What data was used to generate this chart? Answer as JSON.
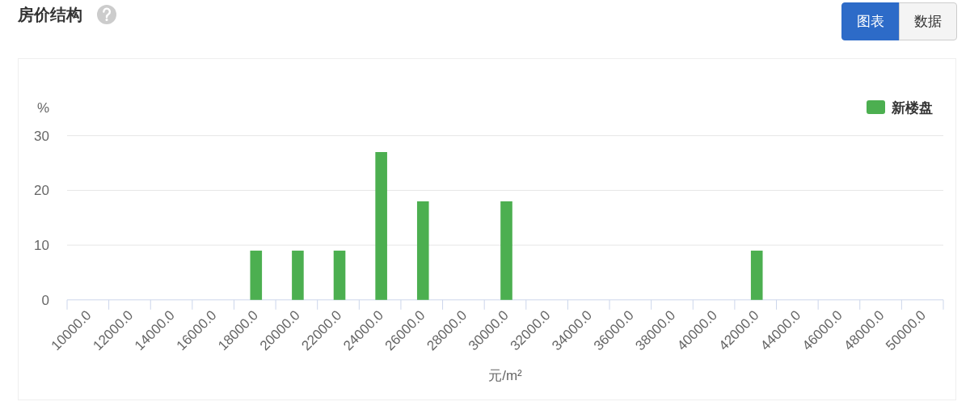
{
  "chart_data": {
    "type": "bar",
    "title": "房价结构",
    "categories": [
      "10000.0",
      "12000.0",
      "14000.0",
      "16000.0",
      "18000.0",
      "20000.0",
      "22000.0",
      "24000.0",
      "26000.0",
      "28000.0",
      "30000.0",
      "32000.0",
      "34000.0",
      "36000.0",
      "38000.0",
      "40000.0",
      "42000.0",
      "44000.0",
      "46000.0",
      "48000.0",
      "50000.0"
    ],
    "series": [
      {
        "name": "新楼盘",
        "color": "#4caf50",
        "values": [
          0,
          0,
          0,
          0,
          9,
          9,
          9,
          27,
          18,
          0,
          18,
          0,
          0,
          0,
          0,
          0,
          9,
          0,
          0,
          0,
          0
        ]
      }
    ],
    "xlabel": "元/m²",
    "ylabel": "%",
    "ylim": [
      0,
      30
    ],
    "yticks": [
      0,
      10,
      20,
      30
    ],
    "grid": "y",
    "legend": "top right",
    "annotations": [
      "图表",
      "数据"
    ]
  }
}
